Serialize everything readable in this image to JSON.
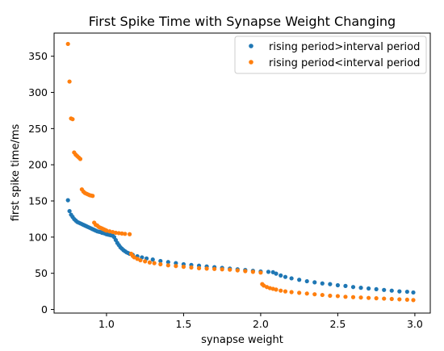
{
  "chart_data": {
    "type": "scatter",
    "title": "First Spike Time with Synapse Weight Changing",
    "xlabel": "synapse weight",
    "ylabel": "first spike time/ms",
    "xlim": [
      0.66,
      3.1
    ],
    "ylim": [
      -5,
      382
    ],
    "xticks": [
      1.0,
      1.5,
      2.0,
      2.5,
      3.0
    ],
    "xtick_labels": [
      "1.0",
      "1.5",
      "2.0",
      "2.5",
      "3.0"
    ],
    "yticks": [
      0,
      50,
      100,
      150,
      200,
      250,
      300,
      350
    ],
    "ytick_labels": [
      "0",
      "50",
      "100",
      "150",
      "200",
      "250",
      "300",
      "350"
    ],
    "grid": false,
    "legend_position": "upper-right",
    "series": [
      {
        "name": "rising period>interval period",
        "color": "#1f77b4",
        "points": [
          [
            0.75,
            151
          ],
          [
            0.76,
            136
          ],
          [
            0.77,
            131
          ],
          [
            0.78,
            128
          ],
          [
            0.79,
            125
          ],
          [
            0.8,
            123
          ],
          [
            0.81,
            121
          ],
          [
            0.82,
            120
          ],
          [
            0.83,
            119
          ],
          [
            0.84,
            118
          ],
          [
            0.85,
            117
          ],
          [
            0.86,
            116
          ],
          [
            0.87,
            115
          ],
          [
            0.88,
            114
          ],
          [
            0.89,
            113
          ],
          [
            0.9,
            112
          ],
          [
            0.91,
            111
          ],
          [
            0.92,
            110
          ],
          [
            0.93,
            109
          ],
          [
            0.94,
            108
          ],
          [
            0.95,
            107.5
          ],
          [
            0.96,
            107
          ],
          [
            0.97,
            106
          ],
          [
            0.98,
            105.5
          ],
          [
            0.99,
            105
          ],
          [
            1.0,
            104
          ],
          [
            1.01,
            103.5
          ],
          [
            1.02,
            103
          ],
          [
            1.03,
            102.5
          ],
          [
            1.04,
            102
          ],
          [
            1.05,
            100
          ],
          [
            1.06,
            96
          ],
          [
            1.07,
            92
          ],
          [
            1.08,
            89
          ],
          [
            1.09,
            86
          ],
          [
            1.1,
            84
          ],
          [
            1.11,
            82
          ],
          [
            1.12,
            80.5
          ],
          [
            1.13,
            79
          ],
          [
            1.14,
            78
          ],
          [
            1.15,
            77
          ],
          [
            1.17,
            75.5
          ],
          [
            1.2,
            73.5
          ],
          [
            1.23,
            72
          ],
          [
            1.26,
            70.5
          ],
          [
            1.3,
            69
          ],
          [
            1.35,
            67
          ],
          [
            1.4,
            65.5
          ],
          [
            1.45,
            64
          ],
          [
            1.5,
            62.5
          ],
          [
            1.55,
            61.5
          ],
          [
            1.6,
            60.5
          ],
          [
            1.65,
            59.5
          ],
          [
            1.7,
            58.5
          ],
          [
            1.75,
            57.5
          ],
          [
            1.8,
            56.5
          ],
          [
            1.85,
            55.5
          ],
          [
            1.9,
            54.5
          ],
          [
            1.95,
            53.5
          ],
          [
            2.0,
            52.5
          ],
          [
            2.05,
            52
          ],
          [
            2.08,
            51.5
          ],
          [
            2.1,
            49.5
          ],
          [
            2.13,
            47
          ],
          [
            2.16,
            45
          ],
          [
            2.2,
            43
          ],
          [
            2.25,
            41
          ],
          [
            2.3,
            39
          ],
          [
            2.35,
            37.5
          ],
          [
            2.4,
            36
          ],
          [
            2.45,
            35
          ],
          [
            2.5,
            33.5
          ],
          [
            2.55,
            32.5
          ],
          [
            2.6,
            31
          ],
          [
            2.65,
            30
          ],
          [
            2.7,
            29
          ],
          [
            2.75,
            28
          ],
          [
            2.8,
            27
          ],
          [
            2.85,
            26
          ],
          [
            2.9,
            25
          ],
          [
            2.95,
            24.5
          ],
          [
            2.99,
            23.5
          ]
        ]
      },
      {
        "name": "rising period<interval period",
        "color": "#ff7f0e",
        "points": [
          [
            0.75,
            367
          ],
          [
            0.76,
            315
          ],
          [
            0.77,
            264
          ],
          [
            0.78,
            263
          ],
          [
            0.79,
            217
          ],
          [
            0.8,
            214
          ],
          [
            0.81,
            212
          ],
          [
            0.82,
            210
          ],
          [
            0.83,
            208
          ],
          [
            0.84,
            166
          ],
          [
            0.85,
            163
          ],
          [
            0.86,
            161
          ],
          [
            0.87,
            160
          ],
          [
            0.88,
            159
          ],
          [
            0.89,
            158
          ],
          [
            0.9,
            157.5
          ],
          [
            0.91,
            157
          ],
          [
            0.92,
            120
          ],
          [
            0.93,
            117
          ],
          [
            0.94,
            116
          ],
          [
            0.95,
            114
          ],
          [
            0.96,
            113
          ],
          [
            0.97,
            112
          ],
          [
            0.98,
            111
          ],
          [
            0.99,
            110
          ],
          [
            1.0,
            109
          ],
          [
            1.02,
            108
          ],
          [
            1.04,
            107
          ],
          [
            1.06,
            106
          ],
          [
            1.08,
            105.5
          ],
          [
            1.1,
            105
          ],
          [
            1.12,
            104.5
          ],
          [
            1.15,
            104
          ],
          [
            1.16,
            77
          ],
          [
            1.17,
            74
          ],
          [
            1.18,
            72
          ],
          [
            1.2,
            70
          ],
          [
            1.22,
            68
          ],
          [
            1.25,
            66.5
          ],
          [
            1.28,
            65
          ],
          [
            1.31,
            64
          ],
          [
            1.35,
            62.5
          ],
          [
            1.4,
            61
          ],
          [
            1.45,
            60
          ],
          [
            1.5,
            59
          ],
          [
            1.55,
            58
          ],
          [
            1.6,
            57
          ],
          [
            1.65,
            56.5
          ],
          [
            1.7,
            56
          ],
          [
            1.75,
            55.5
          ],
          [
            1.8,
            55
          ],
          [
            1.85,
            54
          ],
          [
            1.9,
            53
          ],
          [
            1.95,
            52
          ],
          [
            2.0,
            51
          ],
          [
            2.01,
            35
          ],
          [
            2.02,
            33
          ],
          [
            2.04,
            31
          ],
          [
            2.06,
            29.5
          ],
          [
            2.08,
            28.5
          ],
          [
            2.1,
            27.5
          ],
          [
            2.13,
            26
          ],
          [
            2.16,
            25
          ],
          [
            2.2,
            24
          ],
          [
            2.25,
            23
          ],
          [
            2.3,
            22
          ],
          [
            2.35,
            21
          ],
          [
            2.4,
            20
          ],
          [
            2.45,
            19
          ],
          [
            2.5,
            18.5
          ],
          [
            2.55,
            17.5
          ],
          [
            2.6,
            17
          ],
          [
            2.65,
            16.5
          ],
          [
            2.7,
            16
          ],
          [
            2.75,
            15.5
          ],
          [
            2.8,
            15
          ],
          [
            2.85,
            14.5
          ],
          [
            2.9,
            14
          ],
          [
            2.95,
            13.5
          ],
          [
            2.99,
            13
          ]
        ]
      }
    ]
  }
}
